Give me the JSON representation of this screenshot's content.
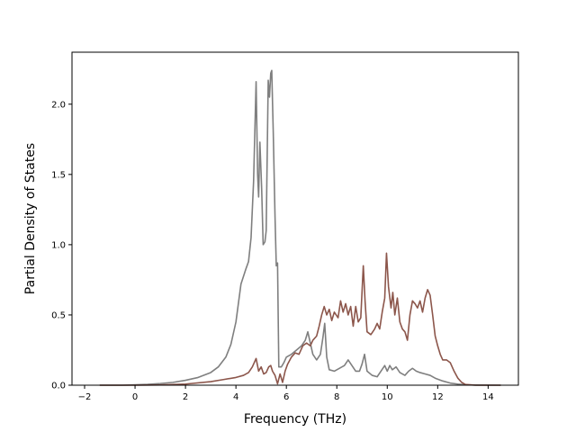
{
  "chart_data": {
    "type": "line",
    "title": "",
    "xlabel": "Frequency (THz)",
    "ylabel": "Partial Density of States",
    "xlim": [
      -2.5,
      15.2
    ],
    "ylim": [
      0.0,
      2.37
    ],
    "xticks": [
      -2,
      0,
      2,
      4,
      6,
      8,
      10,
      12,
      14
    ],
    "xtick_labels": [
      "−2",
      "0",
      "2",
      "4",
      "6",
      "8",
      "10",
      "12",
      "14"
    ],
    "yticks": [
      0.0,
      0.5,
      1.0,
      1.5,
      2.0
    ],
    "ytick_labels": [
      "0.0",
      "0.5",
      "1.0",
      "1.5",
      "2.0"
    ],
    "grid": false,
    "legend": "none",
    "series": [
      {
        "color": "#7f7f7f",
        "points": [
          [
            -1.4,
            0.0
          ],
          [
            -0.5,
            0.0
          ],
          [
            0.0,
            0.003
          ],
          [
            0.5,
            0.006
          ],
          [
            1.0,
            0.012
          ],
          [
            1.5,
            0.02
          ],
          [
            2.0,
            0.035
          ],
          [
            2.5,
            0.055
          ],
          [
            3.0,
            0.09
          ],
          [
            3.3,
            0.13
          ],
          [
            3.6,
            0.2
          ],
          [
            3.8,
            0.29
          ],
          [
            4.0,
            0.45
          ],
          [
            4.2,
            0.72
          ],
          [
            4.4,
            0.83
          ],
          [
            4.5,
            0.88
          ],
          [
            4.6,
            1.05
          ],
          [
            4.7,
            1.45
          ],
          [
            4.8,
            2.16
          ],
          [
            4.86,
            1.5
          ],
          [
            4.9,
            1.34
          ],
          [
            4.95,
            1.73
          ],
          [
            5.02,
            1.4
          ],
          [
            5.08,
            1.0
          ],
          [
            5.15,
            1.02
          ],
          [
            5.2,
            1.1
          ],
          [
            5.28,
            2.17
          ],
          [
            5.33,
            2.05
          ],
          [
            5.38,
            2.22
          ],
          [
            5.42,
            2.24
          ],
          [
            5.48,
            1.8
          ],
          [
            5.55,
            1.2
          ],
          [
            5.6,
            0.85
          ],
          [
            5.65,
            0.87
          ],
          [
            5.7,
            0.13
          ],
          [
            5.8,
            0.13
          ],
          [
            5.9,
            0.16
          ],
          [
            6.0,
            0.2
          ],
          [
            6.2,
            0.22
          ],
          [
            6.4,
            0.25
          ],
          [
            6.6,
            0.28
          ],
          [
            6.75,
            0.32
          ],
          [
            6.85,
            0.38
          ],
          [
            6.95,
            0.3
          ],
          [
            7.05,
            0.22
          ],
          [
            7.2,
            0.18
          ],
          [
            7.35,
            0.22
          ],
          [
            7.45,
            0.34
          ],
          [
            7.52,
            0.44
          ],
          [
            7.6,
            0.2
          ],
          [
            7.7,
            0.11
          ],
          [
            7.9,
            0.1
          ],
          [
            8.1,
            0.12
          ],
          [
            8.3,
            0.14
          ],
          [
            8.45,
            0.18
          ],
          [
            8.6,
            0.14
          ],
          [
            8.75,
            0.1
          ],
          [
            8.9,
            0.1
          ],
          [
            9.0,
            0.15
          ],
          [
            9.1,
            0.22
          ],
          [
            9.2,
            0.1
          ],
          [
            9.4,
            0.07
          ],
          [
            9.6,
            0.06
          ],
          [
            9.75,
            0.1
          ],
          [
            9.9,
            0.14
          ],
          [
            10.0,
            0.1
          ],
          [
            10.1,
            0.14
          ],
          [
            10.2,
            0.11
          ],
          [
            10.35,
            0.13
          ],
          [
            10.5,
            0.09
          ],
          [
            10.7,
            0.07
          ],
          [
            10.85,
            0.1
          ],
          [
            11.0,
            0.12
          ],
          [
            11.15,
            0.1
          ],
          [
            11.3,
            0.09
          ],
          [
            11.5,
            0.08
          ],
          [
            11.7,
            0.07
          ],
          [
            11.9,
            0.05
          ],
          [
            12.2,
            0.03
          ],
          [
            12.5,
            0.015
          ],
          [
            12.8,
            0.008
          ],
          [
            13.1,
            0.003
          ],
          [
            13.5,
            0.001
          ],
          [
            14.5,
            0.0
          ]
        ]
      },
      {
        "color": "#8c564b",
        "points": [
          [
            -1.4,
            0.0
          ],
          [
            -0.5,
            0.0
          ],
          [
            0.0,
            0.0
          ],
          [
            1.0,
            0.002
          ],
          [
            2.0,
            0.008
          ],
          [
            3.0,
            0.025
          ],
          [
            3.5,
            0.04
          ],
          [
            4.0,
            0.055
          ],
          [
            4.3,
            0.07
          ],
          [
            4.5,
            0.09
          ],
          [
            4.65,
            0.13
          ],
          [
            4.8,
            0.19
          ],
          [
            4.9,
            0.1
          ],
          [
            5.0,
            0.13
          ],
          [
            5.1,
            0.08
          ],
          [
            5.2,
            0.09
          ],
          [
            5.3,
            0.13
          ],
          [
            5.38,
            0.14
          ],
          [
            5.45,
            0.1
          ],
          [
            5.55,
            0.07
          ],
          [
            5.65,
            0.01
          ],
          [
            5.75,
            0.08
          ],
          [
            5.85,
            0.02
          ],
          [
            5.95,
            0.1
          ],
          [
            6.05,
            0.15
          ],
          [
            6.2,
            0.2
          ],
          [
            6.35,
            0.23
          ],
          [
            6.5,
            0.22
          ],
          [
            6.65,
            0.28
          ],
          [
            6.8,
            0.3
          ],
          [
            6.95,
            0.28
          ],
          [
            7.05,
            0.32
          ],
          [
            7.2,
            0.35
          ],
          [
            7.3,
            0.42
          ],
          [
            7.4,
            0.5
          ],
          [
            7.5,
            0.56
          ],
          [
            7.6,
            0.5
          ],
          [
            7.7,
            0.54
          ],
          [
            7.8,
            0.46
          ],
          [
            7.9,
            0.52
          ],
          [
            8.05,
            0.48
          ],
          [
            8.15,
            0.6
          ],
          [
            8.25,
            0.52
          ],
          [
            8.35,
            0.58
          ],
          [
            8.45,
            0.5
          ],
          [
            8.55,
            0.56
          ],
          [
            8.65,
            0.42
          ],
          [
            8.75,
            0.56
          ],
          [
            8.85,
            0.45
          ],
          [
            8.95,
            0.48
          ],
          [
            9.05,
            0.85
          ],
          [
            9.12,
            0.6
          ],
          [
            9.2,
            0.38
          ],
          [
            9.35,
            0.36
          ],
          [
            9.5,
            0.4
          ],
          [
            9.6,
            0.44
          ],
          [
            9.7,
            0.4
          ],
          [
            9.8,
            0.52
          ],
          [
            9.9,
            0.62
          ],
          [
            9.97,
            0.94
          ],
          [
            10.05,
            0.7
          ],
          [
            10.15,
            0.55
          ],
          [
            10.22,
            0.66
          ],
          [
            10.3,
            0.5
          ],
          [
            10.4,
            0.62
          ],
          [
            10.5,
            0.45
          ],
          [
            10.6,
            0.4
          ],
          [
            10.7,
            0.38
          ],
          [
            10.8,
            0.32
          ],
          [
            10.9,
            0.5
          ],
          [
            11.0,
            0.6
          ],
          [
            11.1,
            0.58
          ],
          [
            11.2,
            0.55
          ],
          [
            11.3,
            0.6
          ],
          [
            11.4,
            0.52
          ],
          [
            11.5,
            0.62
          ],
          [
            11.6,
            0.68
          ],
          [
            11.7,
            0.64
          ],
          [
            11.8,
            0.5
          ],
          [
            11.9,
            0.35
          ],
          [
            12.0,
            0.28
          ],
          [
            12.1,
            0.22
          ],
          [
            12.2,
            0.18
          ],
          [
            12.35,
            0.18
          ],
          [
            12.5,
            0.16
          ],
          [
            12.65,
            0.1
          ],
          [
            12.8,
            0.05
          ],
          [
            12.95,
            0.02
          ],
          [
            13.1,
            0.005
          ],
          [
            13.5,
            0.0
          ],
          [
            14.5,
            0.0
          ]
        ]
      }
    ]
  }
}
